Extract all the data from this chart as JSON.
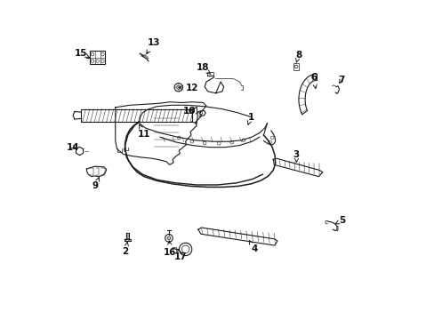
{
  "background_color": "#ffffff",
  "fig_width": 4.89,
  "fig_height": 3.6,
  "dpi": 100,
  "line_color": "#1a1a1a",
  "label_fontsize": 7.5,
  "label_color": "#111111",
  "parts_labels": {
    "1": [
      0.595,
      0.575,
      0.6,
      0.61
    ],
    "2": [
      0.22,
      0.215,
      0.21,
      0.18
    ],
    "3": [
      0.72,
      0.395,
      0.74,
      0.39
    ],
    "4": [
      0.6,
      0.215,
      0.615,
      0.178
    ],
    "5": [
      0.87,
      0.29,
      0.89,
      0.278
    ],
    "6": [
      0.79,
      0.72,
      0.8,
      0.74
    ],
    "7": [
      0.87,
      0.72,
      0.885,
      0.74
    ],
    "8": [
      0.76,
      0.83,
      0.77,
      0.855
    ],
    "9": [
      0.12,
      0.43,
      0.115,
      0.4
    ],
    "10": [
      0.43,
      0.64,
      0.415,
      0.645
    ],
    "11": [
      0.27,
      0.58,
      0.275,
      0.558
    ],
    "12": [
      0.39,
      0.73,
      0.415,
      0.73
    ],
    "13": [
      0.295,
      0.87,
      0.31,
      0.885
    ],
    "14": [
      0.085,
      0.53,
      0.063,
      0.545
    ],
    "15": [
      0.11,
      0.82,
      0.088,
      0.83
    ],
    "16": [
      0.355,
      0.228,
      0.358,
      0.205
    ],
    "17": [
      0.39,
      0.198,
      0.39,
      0.182
    ],
    "18": [
      0.46,
      0.76,
      0.452,
      0.785
    ]
  }
}
